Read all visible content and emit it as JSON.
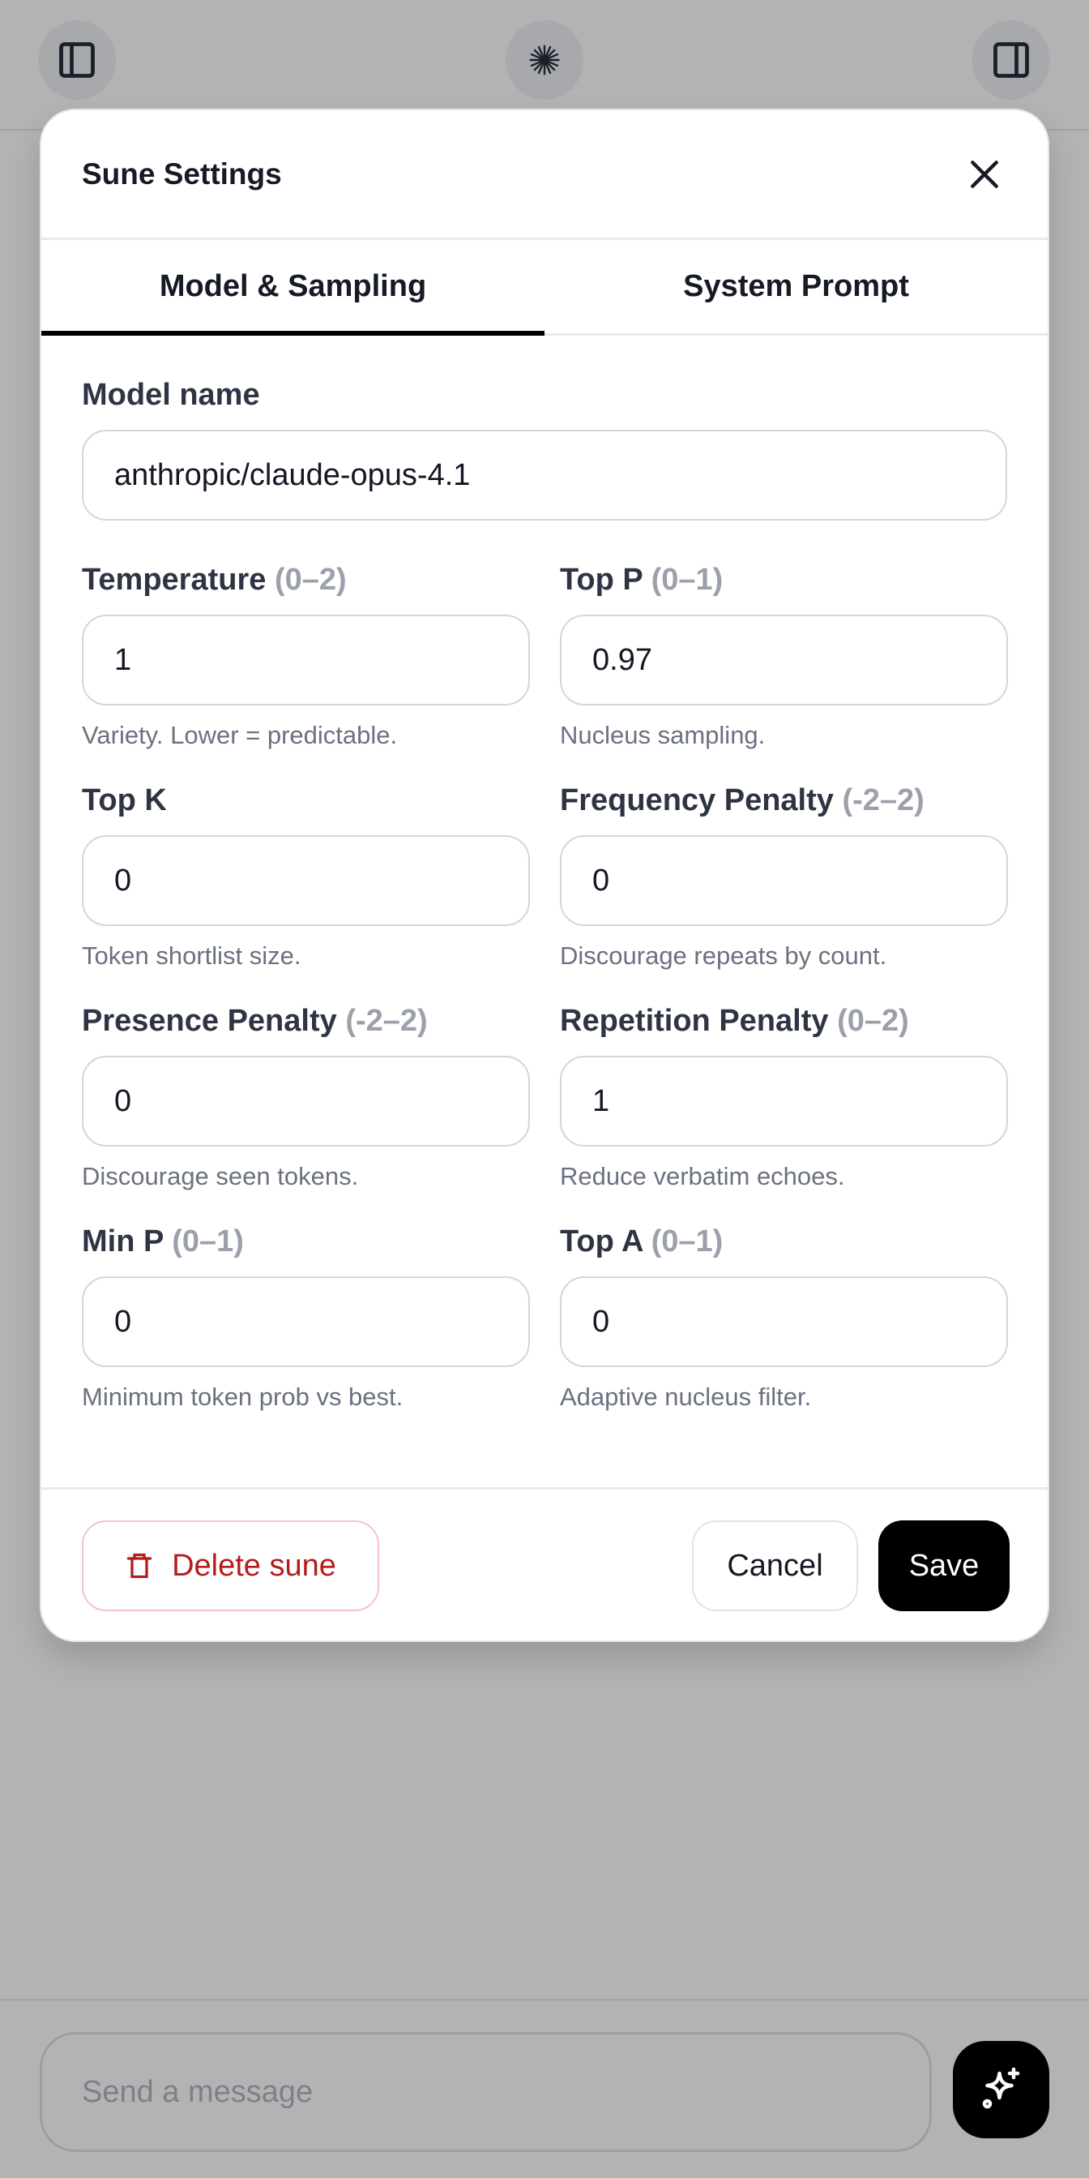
{
  "top_bar": {
    "left_icon": "sidebar-left-icon",
    "center_icon": "starburst-logo-icon",
    "right_icon": "sidebar-right-icon"
  },
  "modal": {
    "title": "Sune Settings",
    "close_icon": "close-icon",
    "tabs": [
      {
        "label": "Model & Sampling",
        "active": true
      },
      {
        "label": "System Prompt",
        "active": false
      }
    ],
    "model_name": {
      "label": "Model name",
      "value": "anthropic/claude-opus-4.1"
    },
    "fields": [
      {
        "label": "Temperature",
        "range": "(0–2)",
        "value": "1",
        "help": "Variety. Lower = predictable."
      },
      {
        "label": "Top P",
        "range": "(0–1)",
        "value": "0.97",
        "help": "Nucleus sampling."
      },
      {
        "label": "Top K",
        "range": "",
        "value": "0",
        "help": "Token shortlist size."
      },
      {
        "label": "Frequency Penalty",
        "range": "(-2–2)",
        "value": "0",
        "help": "Discourage repeats by count."
      },
      {
        "label": "Presence Penalty",
        "range": "(-2–2)",
        "value": "0",
        "help": "Discourage seen tokens."
      },
      {
        "label": "Repetition Penalty",
        "range": "(0–2)",
        "value": "1",
        "help": "Reduce verbatim echoes."
      },
      {
        "label": "Min P",
        "range": "(0–1)",
        "value": "0",
        "help": "Minimum token prob vs best."
      },
      {
        "label": "Top A",
        "range": "(0–1)",
        "value": "0",
        "help": "Adaptive nucleus filter."
      }
    ],
    "footer": {
      "delete_label": "Delete sune",
      "cancel_label": "Cancel",
      "save_label": "Save",
      "delete_color": "#b51c1c"
    }
  },
  "composer": {
    "placeholder": "Send a message",
    "send_icon": "sparkles-icon"
  }
}
